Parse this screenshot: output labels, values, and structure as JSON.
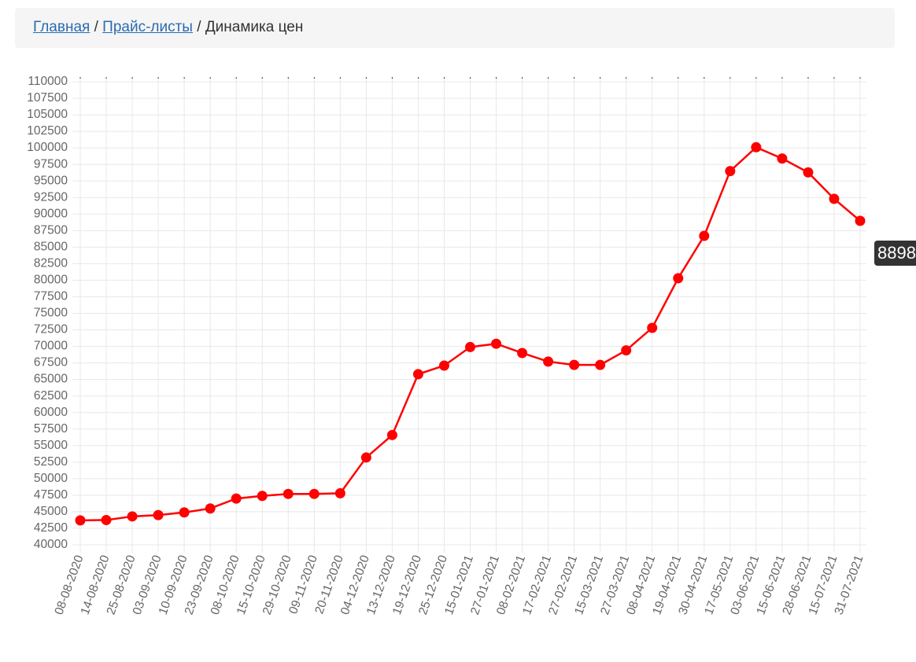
{
  "breadcrumb": {
    "items": [
      "Главная",
      "Прайс-листы",
      "Динамика цен"
    ],
    "separator": "/"
  },
  "chart_data": {
    "type": "line",
    "categories": [
      "08-08-2020",
      "14-08-2020",
      "25-08-2020",
      "03-09-2020",
      "10-09-2020",
      "23-09-2020",
      "08-10-2020",
      "15-10-2020",
      "29-10-2020",
      "09-11-2020",
      "20-11-2020",
      "04-12-2020",
      "13-12-2020",
      "19-12-2020",
      "25-12-2020",
      "15-01-2021",
      "27-01-2021",
      "08-02-2021",
      "17-02-2021",
      "27-02-2021",
      "15-03-2021",
      "27-03-2021",
      "08-04-2021",
      "19-04-2021",
      "30-04-2021",
      "17-05-2021",
      "03-06-2021",
      "15-06-2021",
      "28-06-2021",
      "15-07-2021",
      "31-07-2021"
    ],
    "series": [
      {
        "color": "#ff0000",
        "values": [
          43700,
          43750,
          44300,
          44500,
          44900,
          45500,
          47000,
          47400,
          47700,
          47700,
          47800,
          53200,
          56600,
          65800,
          67100,
          69900,
          70400,
          69000,
          67700,
          67200,
          67200,
          69400,
          72800,
          80300,
          86700,
          96500,
          100100,
          98400,
          96300,
          92300,
          88980
        ]
      }
    ],
    "ylim": [
      40000,
      110000
    ],
    "yticks": [
      40000,
      42500,
      45000,
      47500,
      50000,
      52500,
      55000,
      57500,
      60000,
      62500,
      65000,
      67500,
      70000,
      72500,
      75000,
      77500,
      80000,
      82500,
      85000,
      87500,
      90000,
      92500,
      95000,
      97500,
      100000,
      102500,
      105000,
      107500,
      110000
    ],
    "grid": true
  }
}
